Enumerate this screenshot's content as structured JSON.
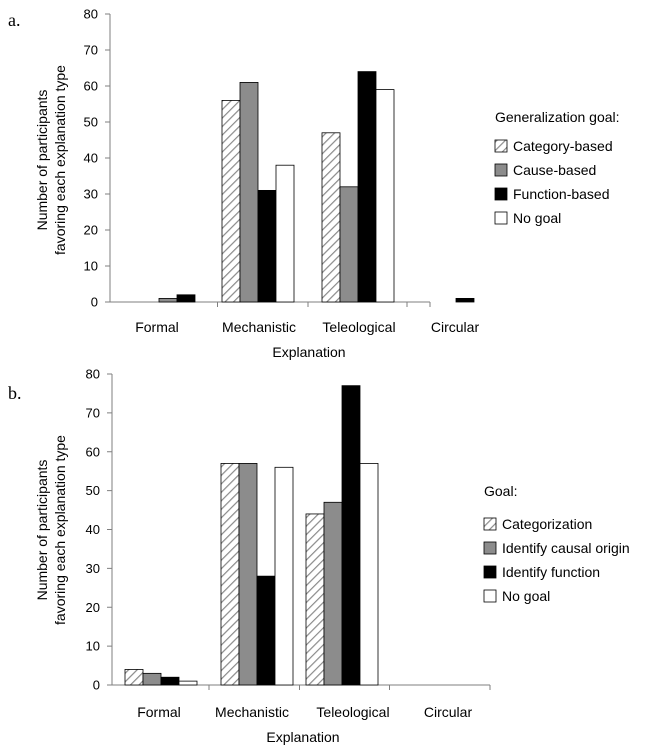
{
  "fills": {
    "hatched": "hatch",
    "gray": "#8c8c8c",
    "black": "#000000",
    "white": "#ffffff"
  },
  "chart_data": [
    {
      "type": "bar",
      "panel_label": "a.",
      "xlabel": "Explanation",
      "ylabel": [
        "Number of participants",
        "favoring each explanation type"
      ],
      "ylim": [
        0,
        80
      ],
      "yticks": [
        0,
        10,
        20,
        30,
        40,
        50,
        60,
        70,
        80
      ],
      "categories": [
        "Formal",
        "Mechanistic",
        "Teleological",
        "Circular"
      ],
      "legend_title": "Generalization goal:",
      "legend_position": "right",
      "series": [
        {
          "name": "Category-based",
          "fill": "hatched",
          "values": [
            0,
            56,
            47,
            0
          ]
        },
        {
          "name": "Cause-based",
          "fill": "gray",
          "values": [
            1,
            61,
            32,
            0
          ]
        },
        {
          "name": "Function-based",
          "fill": "black",
          "values": [
            2,
            31,
            64,
            1
          ]
        },
        {
          "name": "No goal",
          "fill": "white",
          "values": [
            0,
            38,
            59,
            0
          ]
        }
      ]
    },
    {
      "type": "bar",
      "panel_label": "b.",
      "xlabel": "Explanation",
      "ylabel": [
        "Number of participants",
        "favoring each explanation type"
      ],
      "ylim": [
        0,
        80
      ],
      "yticks": [
        0,
        10,
        20,
        30,
        40,
        50,
        60,
        70,
        80
      ],
      "categories": [
        "Formal",
        "Mechanistic",
        "Teleological",
        "Circular"
      ],
      "legend_title": "Goal:",
      "legend_position": "right",
      "series": [
        {
          "name": "Categorization",
          "fill": "hatched",
          "values": [
            4,
            57,
            44,
            0
          ]
        },
        {
          "name": "Identify causal origin",
          "fill": "gray",
          "values": [
            3,
            57,
            47,
            0
          ]
        },
        {
          "name": "Identify function",
          "fill": "black",
          "values": [
            2,
            28,
            77,
            0
          ]
        },
        {
          "name": "No goal",
          "fill": "white",
          "values": [
            1,
            56,
            57,
            0
          ]
        }
      ]
    }
  ]
}
